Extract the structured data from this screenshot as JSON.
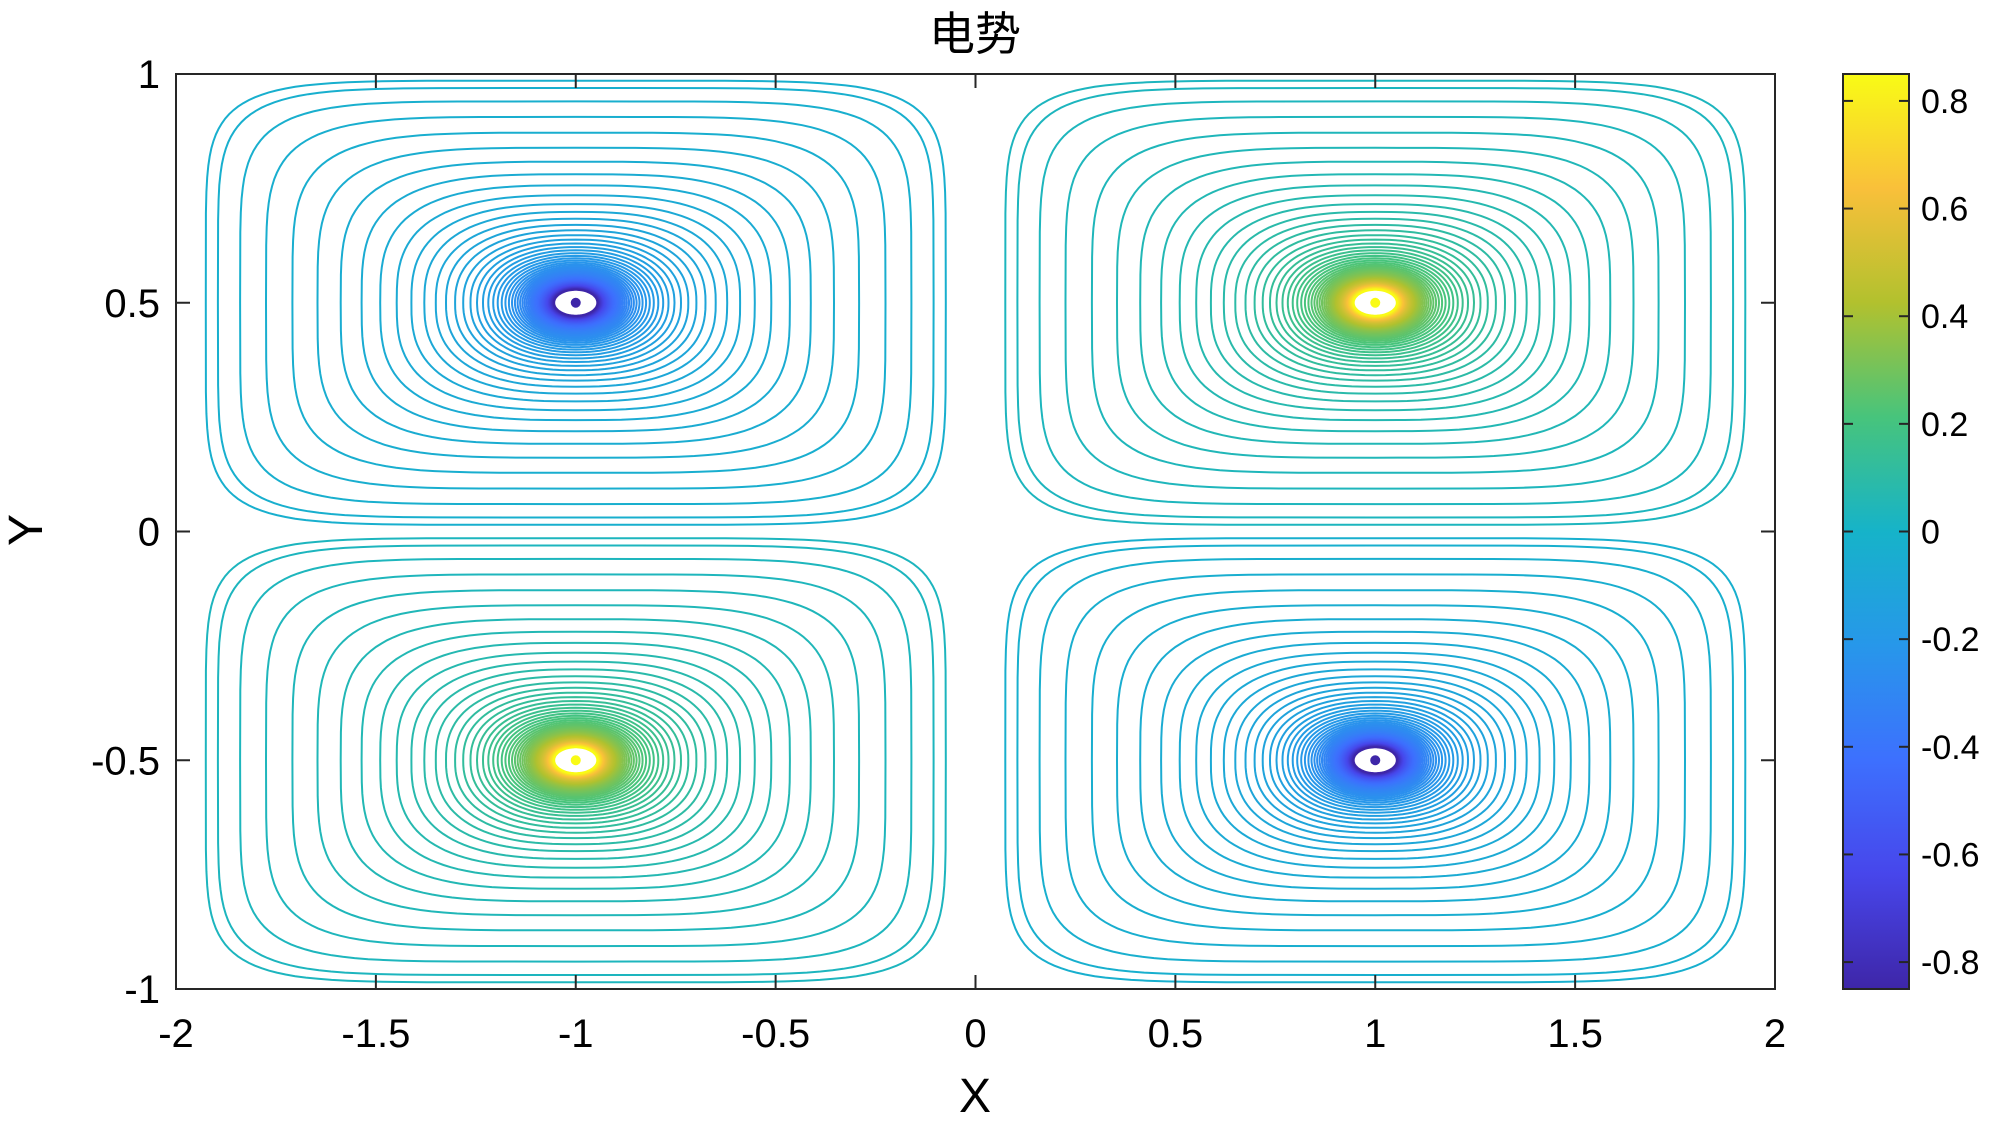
{
  "chart_data": {
    "type": "contour",
    "title": "电势",
    "xlabel": "X",
    "ylabel": "Y",
    "xlim": [
      -2,
      2
    ],
    "ylim": [
      -1,
      1
    ],
    "xticks": [
      -2,
      -1.5,
      -1,
      -0.5,
      0,
      0.5,
      1,
      1.5,
      2
    ],
    "yticks": [
      -1,
      -0.5,
      0,
      0.5,
      1
    ],
    "xtick_labels": [
      "-2",
      "-1.5",
      "-1",
      "-0.5",
      "0",
      "0.5",
      "1",
      "1.5",
      "2"
    ],
    "ytick_labels": [
      "-1",
      "-0.5",
      "0",
      "0.5",
      "1"
    ],
    "grid": false,
    "colormap": "parula",
    "colorbar": {
      "location": "right",
      "range": [
        -0.85,
        0.85
      ],
      "ticks": [
        -0.8,
        -0.6,
        -0.4,
        -0.2,
        0,
        0.2,
        0.4,
        0.6,
        0.8
      ],
      "tick_labels": [
        "-0.8",
        "-0.6",
        "-0.4",
        "-0.2",
        "0",
        "0.2",
        "0.4",
        "0.6",
        "0.8"
      ]
    },
    "charges": [
      {
        "x": -1,
        "y": 0.5,
        "sign": -1
      },
      {
        "x": 1,
        "y": 0.5,
        "sign": 1
      },
      {
        "x": -1,
        "y": -0.5,
        "sign": 1
      },
      {
        "x": 1,
        "y": -0.5,
        "sign": -1
      }
    ],
    "contour_levels_per_sign": 60,
    "outer_level": 0.03
  }
}
